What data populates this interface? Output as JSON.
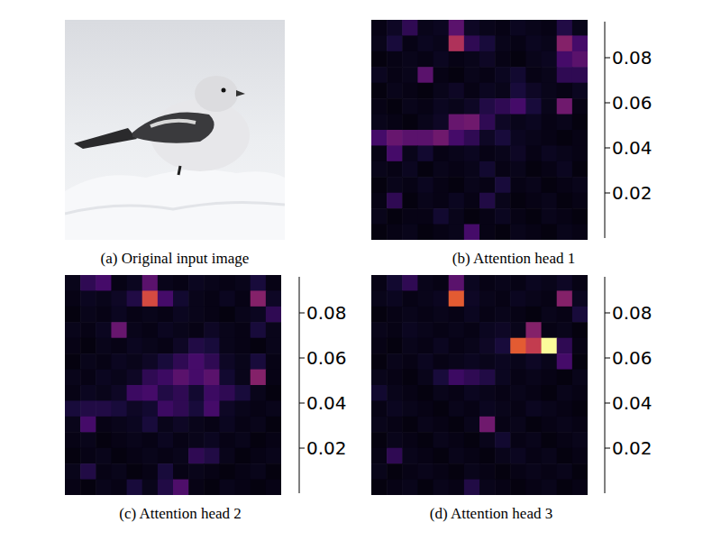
{
  "image": {
    "caption": "(a) Original input image"
  },
  "chart_data": [
    {
      "type": "heatmap",
      "title": "(b) Attention head 1",
      "tick_labels": false,
      "colorbar_range": [
        0,
        0.096
      ],
      "colorbar_ticks": [
        0.02,
        0.04,
        0.06,
        0.08
      ],
      "cells": [
        [
          0.003,
          0.006,
          0.015,
          0.004,
          0.005,
          0.025,
          0.006,
          0.004,
          0.003,
          0.005,
          0.004,
          0.003,
          0.012,
          0.004
        ],
        [
          0.004,
          0.01,
          0.003,
          0.005,
          0.004,
          0.045,
          0.015,
          0.01,
          0.004,
          0.003,
          0.005,
          0.004,
          0.035,
          0.02
        ],
        [
          0.002,
          0.003,
          0.004,
          0.003,
          0.005,
          0.003,
          0.004,
          0.006,
          0.003,
          0.002,
          0.004,
          0.005,
          0.02,
          0.025
        ],
        [
          0.005,
          0.003,
          0.004,
          0.025,
          0.003,
          0.002,
          0.004,
          0.003,
          0.005,
          0.008,
          0.003,
          0.004,
          0.015,
          0.015
        ],
        [
          0.002,
          0.004,
          0.003,
          0.002,
          0.004,
          0.006,
          0.003,
          0.005,
          0.004,
          0.01,
          0.006,
          0.004,
          0.003,
          0.005
        ],
        [
          0.003,
          0.002,
          0.004,
          0.003,
          0.005,
          0.004,
          0.006,
          0.012,
          0.015,
          0.02,
          0.01,
          0.004,
          0.03,
          0.003
        ],
        [
          0.004,
          0.003,
          0.002,
          0.004,
          0.006,
          0.028,
          0.03,
          0.015,
          0.006,
          0.004,
          0.005,
          0.003,
          0.004,
          0.002
        ],
        [
          0.02,
          0.028,
          0.025,
          0.025,
          0.03,
          0.02,
          0.015,
          0.006,
          0.01,
          0.005,
          0.004,
          0.003,
          0.002,
          0.003
        ],
        [
          0.003,
          0.02,
          0.004,
          0.008,
          0.003,
          0.004,
          0.005,
          0.003,
          0.004,
          0.006,
          0.003,
          0.005,
          0.004,
          0.003
        ],
        [
          0.004,
          0.003,
          0.005,
          0.002,
          0.004,
          0.003,
          0.004,
          0.008,
          0.003,
          0.004,
          0.002,
          0.003,
          0.005,
          0.002
        ],
        [
          0.002,
          0.004,
          0.003,
          0.005,
          0.003,
          0.002,
          0.004,
          0.003,
          0.01,
          0.003,
          0.004,
          0.002,
          0.003,
          0.004
        ],
        [
          0.003,
          0.015,
          0.002,
          0.004,
          0.003,
          0.005,
          0.003,
          0.012,
          0.004,
          0.002,
          0.003,
          0.004,
          0.002,
          0.003
        ],
        [
          0.004,
          0.002,
          0.003,
          0.003,
          0.008,
          0.004,
          0.002,
          0.003,
          0.005,
          0.003,
          0.002,
          0.004,
          0.003,
          0.002
        ],
        [
          0.002,
          0.003,
          0.004,
          0.002,
          0.003,
          0.004,
          0.02,
          0.003,
          0.002,
          0.004,
          0.003,
          0.002,
          0.004,
          0.003
        ]
      ]
    },
    {
      "type": "heatmap",
      "title": "(c) Attention head 2",
      "tick_labels": false,
      "colorbar_range": [
        0,
        0.096
      ],
      "colorbar_ticks": [
        0.02,
        0.04,
        0.06,
        0.08
      ],
      "cells": [
        [
          0.004,
          0.015,
          0.02,
          0.003,
          0.005,
          0.025,
          0.004,
          0.003,
          0.005,
          0.004,
          0.003,
          0.004,
          0.01,
          0.003
        ],
        [
          0.003,
          0.005,
          0.004,
          0.006,
          0.012,
          0.055,
          0.02,
          0.008,
          0.004,
          0.003,
          0.005,
          0.003,
          0.035,
          0.006
        ],
        [
          0.002,
          0.004,
          0.003,
          0.005,
          0.003,
          0.004,
          0.003,
          0.005,
          0.004,
          0.003,
          0.002,
          0.004,
          0.005,
          0.015
        ],
        [
          0.004,
          0.003,
          0.005,
          0.028,
          0.004,
          0.003,
          0.005,
          0.004,
          0.003,
          0.006,
          0.004,
          0.003,
          0.01,
          0.004
        ],
        [
          0.003,
          0.002,
          0.004,
          0.003,
          0.005,
          0.004,
          0.003,
          0.006,
          0.012,
          0.01,
          0.004,
          0.003,
          0.002,
          0.004
        ],
        [
          0.002,
          0.004,
          0.003,
          0.005,
          0.004,
          0.006,
          0.01,
          0.015,
          0.02,
          0.015,
          0.006,
          0.004,
          0.01,
          0.003
        ],
        [
          0.004,
          0.003,
          0.005,
          0.004,
          0.006,
          0.015,
          0.018,
          0.025,
          0.02,
          0.025,
          0.008,
          0.004,
          0.035,
          0.003
        ],
        [
          0.003,
          0.005,
          0.004,
          0.006,
          0.018,
          0.02,
          0.012,
          0.015,
          0.008,
          0.018,
          0.015,
          0.01,
          0.004,
          0.002
        ],
        [
          0.01,
          0.012,
          0.012,
          0.01,
          0.006,
          0.008,
          0.018,
          0.015,
          0.01,
          0.02,
          0.006,
          0.004,
          0.003,
          0.004
        ],
        [
          0.004,
          0.02,
          0.003,
          0.004,
          0.005,
          0.01,
          0.004,
          0.006,
          0.004,
          0.003,
          0.005,
          0.003,
          0.004,
          0.002
        ],
        [
          0.003,
          0.004,
          0.002,
          0.003,
          0.004,
          0.003,
          0.005,
          0.003,
          0.004,
          0.005,
          0.003,
          0.004,
          0.002,
          0.003
        ],
        [
          0.002,
          0.003,
          0.004,
          0.002,
          0.003,
          0.004,
          0.003,
          0.004,
          0.015,
          0.012,
          0.004,
          0.002,
          0.003,
          0.004
        ],
        [
          0.004,
          0.012,
          0.003,
          0.004,
          0.002,
          0.003,
          0.01,
          0.003,
          0.004,
          0.003,
          0.002,
          0.003,
          0.004,
          0.002
        ],
        [
          0.003,
          0.002,
          0.004,
          0.003,
          0.01,
          0.004,
          0.012,
          0.022,
          0.003,
          0.002,
          0.004,
          0.003,
          0.002,
          0.003
        ]
      ]
    },
    {
      "type": "heatmap",
      "title": "(d) Attention head 3",
      "tick_labels": false,
      "colorbar_range": [
        0,
        0.096
      ],
      "colorbar_ticks": [
        0.02,
        0.04,
        0.06,
        0.08
      ],
      "cells": [
        [
          0.003,
          0.008,
          0.015,
          0.004,
          0.003,
          0.025,
          0.005,
          0.003,
          0.004,
          0.003,
          0.005,
          0.004,
          0.006,
          0.003
        ],
        [
          0.004,
          0.005,
          0.003,
          0.004,
          0.005,
          0.06,
          0.006,
          0.004,
          0.003,
          0.005,
          0.004,
          0.003,
          0.035,
          0.005
        ],
        [
          0.002,
          0.003,
          0.004,
          0.003,
          0.004,
          0.003,
          0.005,
          0.003,
          0.004,
          0.003,
          0.002,
          0.004,
          0.003,
          0.01
        ],
        [
          0.004,
          0.003,
          0.005,
          0.004,
          0.003,
          0.004,
          0.003,
          0.005,
          0.006,
          0.004,
          0.035,
          0.003,
          0.004,
          0.002
        ],
        [
          0.003,
          0.002,
          0.004,
          0.003,
          0.005,
          0.003,
          0.004,
          0.006,
          0.01,
          0.06,
          0.05,
          0.095,
          0.015,
          0.003
        ],
        [
          0.002,
          0.004,
          0.003,
          0.005,
          0.003,
          0.004,
          0.005,
          0.004,
          0.005,
          0.004,
          0.006,
          0.004,
          0.02,
          0.002
        ],
        [
          0.004,
          0.003,
          0.002,
          0.004,
          0.01,
          0.018,
          0.015,
          0.012,
          0.005,
          0.003,
          0.004,
          0.003,
          0.002,
          0.004
        ],
        [
          0.008,
          0.004,
          0.003,
          0.002,
          0.004,
          0.003,
          0.005,
          0.004,
          0.003,
          0.004,
          0.003,
          0.002,
          0.004,
          0.003
        ],
        [
          0.003,
          0.005,
          0.004,
          0.003,
          0.002,
          0.004,
          0.003,
          0.005,
          0.004,
          0.003,
          0.005,
          0.004,
          0.003,
          0.002
        ],
        [
          0.004,
          0.003,
          0.002,
          0.004,
          0.003,
          0.002,
          0.004,
          0.03,
          0.003,
          0.004,
          0.002,
          0.003,
          0.004,
          0.003
        ],
        [
          0.002,
          0.004,
          0.003,
          0.002,
          0.004,
          0.003,
          0.002,
          0.004,
          0.008,
          0.003,
          0.004,
          0.002,
          0.003,
          0.004
        ],
        [
          0.003,
          0.015,
          0.004,
          0.003,
          0.002,
          0.004,
          0.003,
          0.002,
          0.004,
          0.005,
          0.003,
          0.004,
          0.002,
          0.003
        ],
        [
          0.004,
          0.002,
          0.003,
          0.004,
          0.003,
          0.002,
          0.004,
          0.003,
          0.002,
          0.003,
          0.004,
          0.003,
          0.004,
          0.002
        ],
        [
          0.002,
          0.003,
          0.004,
          0.002,
          0.004,
          0.003,
          0.012,
          0.004,
          0.003,
          0.002,
          0.003,
          0.004,
          0.002,
          0.003
        ]
      ]
    }
  ]
}
